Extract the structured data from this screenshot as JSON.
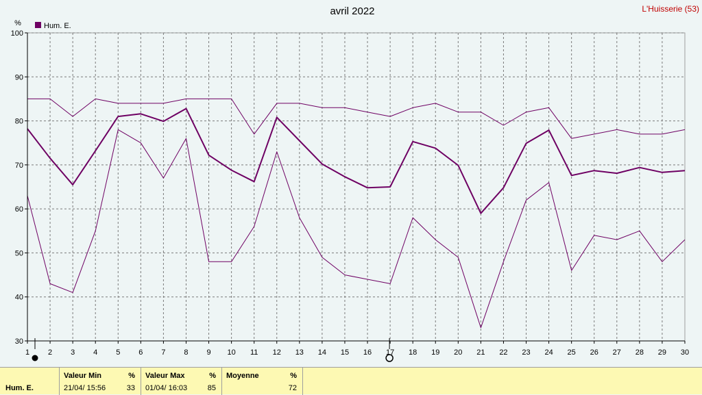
{
  "title": "avril 2022",
  "station": "L'Huisserie (53)",
  "unit": "%",
  "colors": {
    "series": "#6e0063",
    "axis": "#000000",
    "grid": "#7a7a7a",
    "summary_bg": "#fdf9b3",
    "station": "#c00000"
  },
  "chart_data": {
    "type": "line",
    "title": "avril 2022",
    "ylabel": "%",
    "xlabel": "",
    "ylim": [
      30,
      100
    ],
    "yticks": [
      30,
      40,
      50,
      60,
      70,
      80,
      90,
      100
    ],
    "x": [
      1,
      2,
      3,
      4,
      5,
      6,
      7,
      8,
      9,
      10,
      11,
      12,
      13,
      14,
      15,
      16,
      17,
      18,
      19,
      20,
      21,
      22,
      23,
      24,
      25,
      26,
      27,
      28,
      29,
      30
    ],
    "legend": [
      "Hum. E."
    ],
    "legend_position": "top-left",
    "grid": true,
    "markers": {
      "filled_circle_at_day": 1,
      "open_circle_at_day": 17
    },
    "series": [
      {
        "name": "Hum. E.",
        "role": "mean",
        "values": [
          78.2,
          71.5,
          65.5,
          73.2,
          81,
          81.6,
          79.9,
          82.8,
          72.2,
          68.8,
          66.2,
          80.8,
          75.5,
          70.2,
          67.3,
          64.8,
          65,
          75.3,
          73.8,
          69.9,
          59,
          64.8,
          74.9,
          77.9,
          67.6,
          68.7,
          68.1,
          69.4,
          68.3,
          68.7
        ]
      },
      {
        "role": "max",
        "values": [
          85,
          85,
          81,
          85,
          84,
          84,
          84,
          85,
          85,
          85,
          77,
          84,
          84,
          83,
          83,
          82,
          81,
          83,
          84,
          82,
          82,
          79,
          82,
          83,
          76,
          77,
          78,
          77,
          77,
          78
        ]
      },
      {
        "role": "min",
        "values": [
          63,
          43,
          41,
          55,
          78,
          75,
          67,
          76,
          48,
          48,
          56,
          73,
          58,
          49,
          45,
          44,
          43,
          58,
          53,
          49,
          33,
          48,
          62,
          66,
          46,
          54,
          53,
          55,
          48,
          53
        ]
      }
    ]
  },
  "summary": {
    "series_label": "Hum. E.",
    "min": {
      "label": "Valeur Min",
      "unit": "%",
      "when": "21/04/  15:56",
      "value": "33"
    },
    "max": {
      "label": "Valeur Max",
      "unit": "%",
      "when": "01/04/  16:03",
      "value": "85"
    },
    "mean": {
      "label": "Moyenne",
      "unit": "%",
      "value": "72"
    }
  }
}
